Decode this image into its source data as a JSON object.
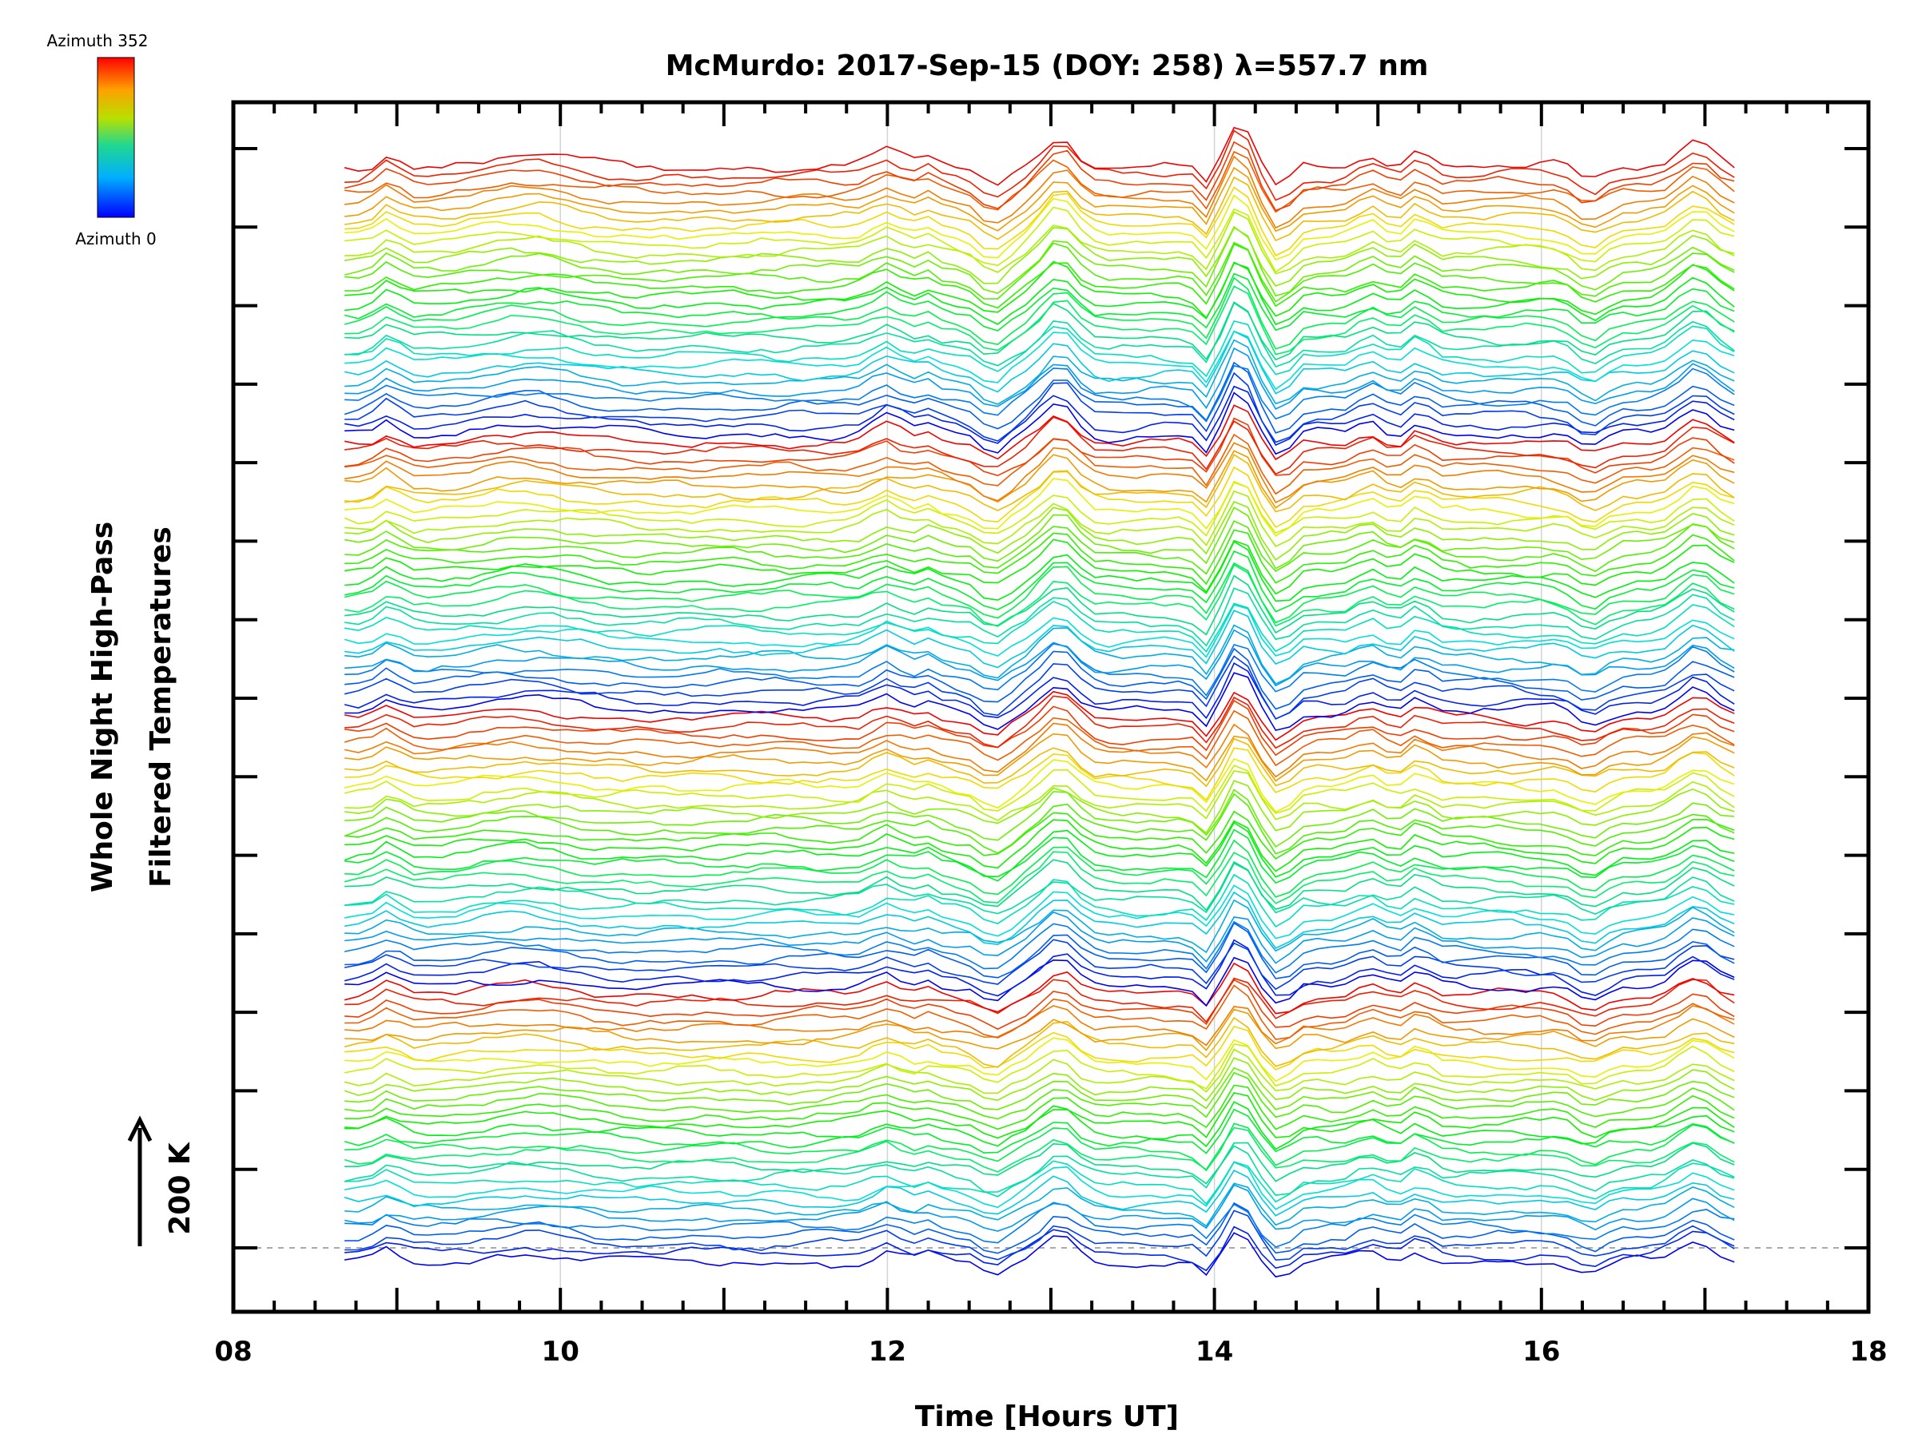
{
  "chart_data": {
    "type": "line",
    "title": "McMurdo: 2017-Sep-15 (DOY: 258) λ=557.7 nm",
    "xlabel": "Time [Hours UT]",
    "ylabel_line1": "Whole Night High-Pass",
    "ylabel_line2": "Filtered Temperatures",
    "xlim": [
      8,
      18
    ],
    "x_ticks": [
      "08",
      "10",
      "12",
      "14",
      "16",
      "18"
    ],
    "x_tick_values": [
      8,
      10,
      12,
      14,
      16,
      18
    ],
    "scale_bar_label": "200 K",
    "colorbar": {
      "top_label": "Azimuth 352",
      "bottom_label": "Azimuth 0"
    },
    "n_traces": 128,
    "time_range": [
      8.68,
      17.2
    ],
    "y_major_tick_count": 15,
    "peak_times_hours_ut": [
      8.95,
      9.8,
      12.0,
      12.25,
      13.05,
      14.15,
      14.95,
      15.25,
      16.95
    ],
    "dip_times_hours_ut": [
      12.65,
      13.95,
      14.4,
      16.3
    ]
  },
  "colors": {
    "low_azimuth": "#0000ff",
    "high_azimuth": "#ff0000",
    "axis": "#000000",
    "grid": "#d3d3d3"
  }
}
